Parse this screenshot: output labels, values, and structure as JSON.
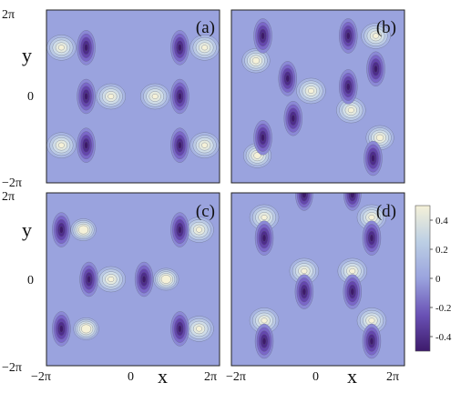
{
  "chart_data": [
    {
      "type": "heatmap",
      "panel_label": "(a)",
      "x_range": [
        "-2π",
        "2π"
      ],
      "y_range": [
        "-2π",
        "2π"
      ],
      "z_range": [
        -0.5,
        0.5
      ],
      "colormap": "contour, purple (negative) to cream (positive)",
      "peaks": [
        {
          "x": -5.2,
          "y": 3.55,
          "z": 0.45
        },
        {
          "x": 5.2,
          "y": 3.55,
          "z": 0.45
        },
        {
          "x": -1.6,
          "y": 0,
          "z": 0.45
        },
        {
          "x": 1.6,
          "y": 0,
          "z": 0.45
        },
        {
          "x": -5.2,
          "y": -3.55,
          "z": 0.45
        },
        {
          "x": 5.2,
          "y": -3.55,
          "z": 0.45
        },
        {
          "x": -3.4,
          "y": 3.55,
          "z": -0.45
        },
        {
          "x": 3.4,
          "y": 3.55,
          "z": -0.45
        },
        {
          "x": -3.4,
          "y": 0,
          "z": -0.45
        },
        {
          "x": 3.4,
          "y": 0,
          "z": -0.45
        },
        {
          "x": -3.4,
          "y": -3.55,
          "z": -0.45
        },
        {
          "x": 3.4,
          "y": -3.55,
          "z": -0.45
        }
      ]
    },
    {
      "type": "heatmap",
      "panel_label": "(b)",
      "x_range": [
        "-2π",
        "2π"
      ],
      "y_range": [
        "-2π",
        "2π"
      ],
      "z_range": [
        -0.5,
        0.5
      ],
      "colormap": "contour, purple (negative) to cream (positive)",
      "peaks": [
        {
          "x": -4.5,
          "y": 2.6,
          "z": 0.4
        },
        {
          "x": 4.2,
          "y": 4.4,
          "z": 0.45
        },
        {
          "x": -0.5,
          "y": 0.4,
          "z": 0.45
        },
        {
          "x": 2.4,
          "y": -1.0,
          "z": 0.45
        },
        {
          "x": -4.4,
          "y": -4.3,
          "z": 0.4
        },
        {
          "x": 4.5,
          "y": -3.0,
          "z": 0.4
        },
        {
          "x": -4.0,
          "y": 4.4,
          "z": -0.45
        },
        {
          "x": 2.2,
          "y": 4.4,
          "z": -0.45
        },
        {
          "x": -2.2,
          "y": 1.3,
          "z": -0.45
        },
        {
          "x": 2.2,
          "y": 0.7,
          "z": -0.45
        },
        {
          "x": -1.8,
          "y": -1.6,
          "z": -0.45
        },
        {
          "x": -4.0,
          "y": -3.0,
          "z": -0.45
        },
        {
          "x": 4.2,
          "y": 2.0,
          "z": -0.45
        },
        {
          "x": 4.0,
          "y": -4.5,
          "z": -0.45
        }
      ]
    },
    {
      "type": "heatmap",
      "panel_label": "(c)",
      "x_range": [
        "-2π",
        "2π"
      ],
      "y_range": [
        "-2π",
        "2π"
      ],
      "z_range": [
        -0.5,
        0.5
      ],
      "colormap": "contour, purple (negative) to cream (positive)",
      "peaks": [
        {
          "x": -3.6,
          "y": 3.6,
          "z": 0.3
        },
        {
          "x": 4.8,
          "y": 3.6,
          "z": 0.45
        },
        {
          "x": -1.6,
          "y": 0,
          "z": 0.45
        },
        {
          "x": 2.4,
          "y": 0,
          "z": 0.3
        },
        {
          "x": -3.4,
          "y": -3.6,
          "z": 0.3
        },
        {
          "x": 4.8,
          "y": -3.6,
          "z": 0.45
        },
        {
          "x": -5.2,
          "y": 3.6,
          "z": -0.45
        },
        {
          "x": 3.4,
          "y": 3.6,
          "z": -0.45
        },
        {
          "x": -3.2,
          "y": 0,
          "z": -0.45
        },
        {
          "x": 0.8,
          "y": 0,
          "z": -0.45
        },
        {
          "x": -5.2,
          "y": -3.6,
          "z": -0.45
        },
        {
          "x": 3.4,
          "y": -3.6,
          "z": -0.45
        }
      ]
    },
    {
      "type": "heatmap",
      "panel_label": "(d)",
      "x_range": [
        "-2π",
        "2π"
      ],
      "y_range": [
        "-2π",
        "2π"
      ],
      "z_range": [
        -0.5,
        0.5
      ],
      "colormap": "contour, purple (negative) to cream (positive)",
      "peaks": [
        {
          "x": -3.9,
          "y": 4.5,
          "z": 0.45
        },
        {
          "x": 3.9,
          "y": 4.5,
          "z": 0.45
        },
        {
          "x": -1.0,
          "y": 0.6,
          "z": 0.45
        },
        {
          "x": 2.5,
          "y": 0.6,
          "z": 0.45
        },
        {
          "x": -3.9,
          "y": -3.0,
          "z": 0.45
        },
        {
          "x": 3.9,
          "y": -3.0,
          "z": 0.45
        },
        {
          "x": -3.9,
          "y": 3.0,
          "z": -0.45
        },
        {
          "x": 3.9,
          "y": 3.0,
          "z": -0.45
        },
        {
          "x": -1.0,
          "y": -0.9,
          "z": -0.45
        },
        {
          "x": 2.5,
          "y": -0.9,
          "z": -0.45
        },
        {
          "x": -3.9,
          "y": -4.5,
          "z": -0.45
        },
        {
          "x": 3.9,
          "y": -4.5,
          "z": -0.45
        },
        {
          "x": -1.0,
          "y": 6.2,
          "z": -0.4
        },
        {
          "x": 2.5,
          "y": 6.2,
          "z": -0.4
        }
      ]
    }
  ],
  "axes": {
    "xlabel": "x",
    "ylabel": "y",
    "x_ticks": [
      "−2π",
      "0",
      "2π"
    ],
    "y_ticks": [
      "2π",
      "0",
      "−2π"
    ]
  },
  "colorbar": {
    "ticks": [
      {
        "value": 0.4,
        "label": "0.4"
      },
      {
        "value": 0.2,
        "label": "0.2"
      },
      {
        "value": 0,
        "label": "0"
      },
      {
        "value": -0.2,
        "label": "-0.2"
      },
      {
        "value": -0.4,
        "label": "-0.4"
      }
    ],
    "range": [
      -0.5,
      0.5
    ],
    "colors": {
      "min": "#3d1a6b",
      "low": "#7a66c8",
      "mid": "#9aa3de",
      "high": "#c9d6e8",
      "max": "#f5f1d8"
    }
  }
}
